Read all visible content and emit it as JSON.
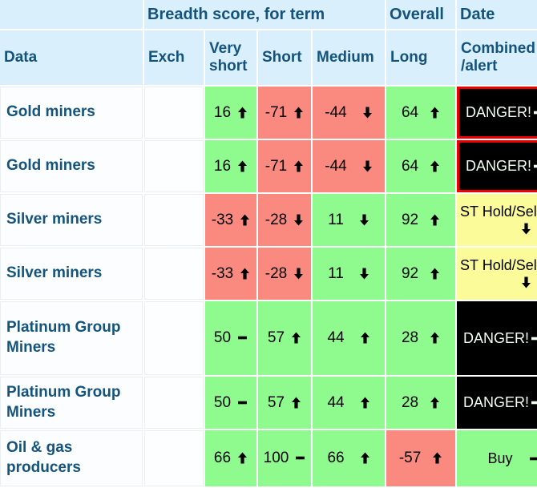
{
  "header": {
    "top": [
      {
        "label": ""
      },
      {
        "label": "Breadth score, for term"
      },
      {
        "label": "Overall"
      },
      {
        "label": "Date"
      }
    ],
    "columns": [
      "Data",
      "Exch",
      "Very short",
      "Short",
      "Medium",
      "Long",
      "Combined\n/alert"
    ]
  },
  "icons": {
    "up": "trend-up-icon",
    "down": "trend-down-icon",
    "flat": "trend-flat-icon"
  },
  "colors": {
    "header_blue": "#d9effb",
    "text_blue": "#14537c",
    "positive_green": "#8ffb8f",
    "negative_red": "#fa8a80",
    "alert_yellow": "#fbfb99",
    "danger_black": "#000000",
    "danger_border_red": "#ee0000"
  },
  "rows": [
    {
      "label": "Gold miners",
      "exch": "",
      "scores": [
        {
          "value": "16",
          "trend": "up",
          "state": "green"
        },
        {
          "value": "-71",
          "trend": "up",
          "state": "red"
        },
        {
          "value": "-44",
          "trend": "down",
          "state": "red"
        },
        {
          "value": "64",
          "trend": "up",
          "state": "green"
        }
      ],
      "alert": {
        "text": "DANGER!",
        "trend": "flat",
        "suffix": "-",
        "kind": "danger",
        "bordered": true
      }
    },
    {
      "label": "Gold miners",
      "exch": "",
      "scores": [
        {
          "value": "16",
          "trend": "up",
          "state": "green"
        },
        {
          "value": "-71",
          "trend": "up",
          "state": "red"
        },
        {
          "value": "-44",
          "trend": "down",
          "state": "red"
        },
        {
          "value": "64",
          "trend": "up",
          "state": "green"
        }
      ],
      "alert": {
        "text": "DANGER!",
        "trend": "flat",
        "suffix": "-",
        "kind": "danger",
        "bordered": true
      }
    },
    {
      "label": "Silver miners",
      "exch": "",
      "scores": [
        {
          "value": "-33",
          "trend": "up",
          "state": "red"
        },
        {
          "value": "-28",
          "trend": "down",
          "state": "red"
        },
        {
          "value": "11",
          "trend": "down",
          "state": "green"
        },
        {
          "value": "92",
          "trend": "up",
          "state": "green"
        }
      ],
      "alert": {
        "text": "ST Hold/Sell",
        "trend": "down",
        "suffix": "",
        "kind": "hold-sell",
        "bordered": false
      }
    },
    {
      "label": "Silver miners",
      "exch": "",
      "scores": [
        {
          "value": "-33",
          "trend": "up",
          "state": "red"
        },
        {
          "value": "-28",
          "trend": "down",
          "state": "red"
        },
        {
          "value": "11",
          "trend": "down",
          "state": "green"
        },
        {
          "value": "92",
          "trend": "up",
          "state": "green"
        }
      ],
      "alert": {
        "text": "ST Hold/Sell",
        "trend": "down",
        "suffix": "",
        "kind": "hold-sell",
        "bordered": false
      }
    },
    {
      "label": "Platinum Group Miners",
      "exch": "",
      "scores": [
        {
          "value": "50",
          "trend": "flat",
          "state": "green"
        },
        {
          "value": "57",
          "trend": "up",
          "state": "green"
        },
        {
          "value": "44",
          "trend": "up",
          "state": "green"
        },
        {
          "value": "28",
          "trend": "up",
          "state": "green"
        }
      ],
      "alert": {
        "text": "DANGER!",
        "trend": "flat",
        "suffix": "-",
        "kind": "danger",
        "bordered": false
      }
    },
    {
      "label": "Platinum Group Miners",
      "exch": "",
      "scores": [
        {
          "value": "50",
          "trend": "flat",
          "state": "green"
        },
        {
          "value": "57",
          "trend": "up",
          "state": "green"
        },
        {
          "value": "44",
          "trend": "up",
          "state": "green"
        },
        {
          "value": "28",
          "trend": "up",
          "state": "green"
        }
      ],
      "alert": {
        "text": "DANGER!",
        "trend": "flat",
        "suffix": "-",
        "kind": "danger",
        "bordered": false
      }
    },
    {
      "label": "Oil & gas producers",
      "exch": "",
      "scores": [
        {
          "value": "66",
          "trend": "up",
          "state": "green"
        },
        {
          "value": "100",
          "trend": "flat",
          "state": "green"
        },
        {
          "value": "66",
          "trend": "up",
          "state": "green"
        },
        {
          "value": "-57",
          "trend": "up",
          "state": "red"
        }
      ],
      "alert": {
        "text": "Buy",
        "trend": "flat",
        "suffix": "-",
        "kind": "buy",
        "bordered": false
      }
    }
  ]
}
